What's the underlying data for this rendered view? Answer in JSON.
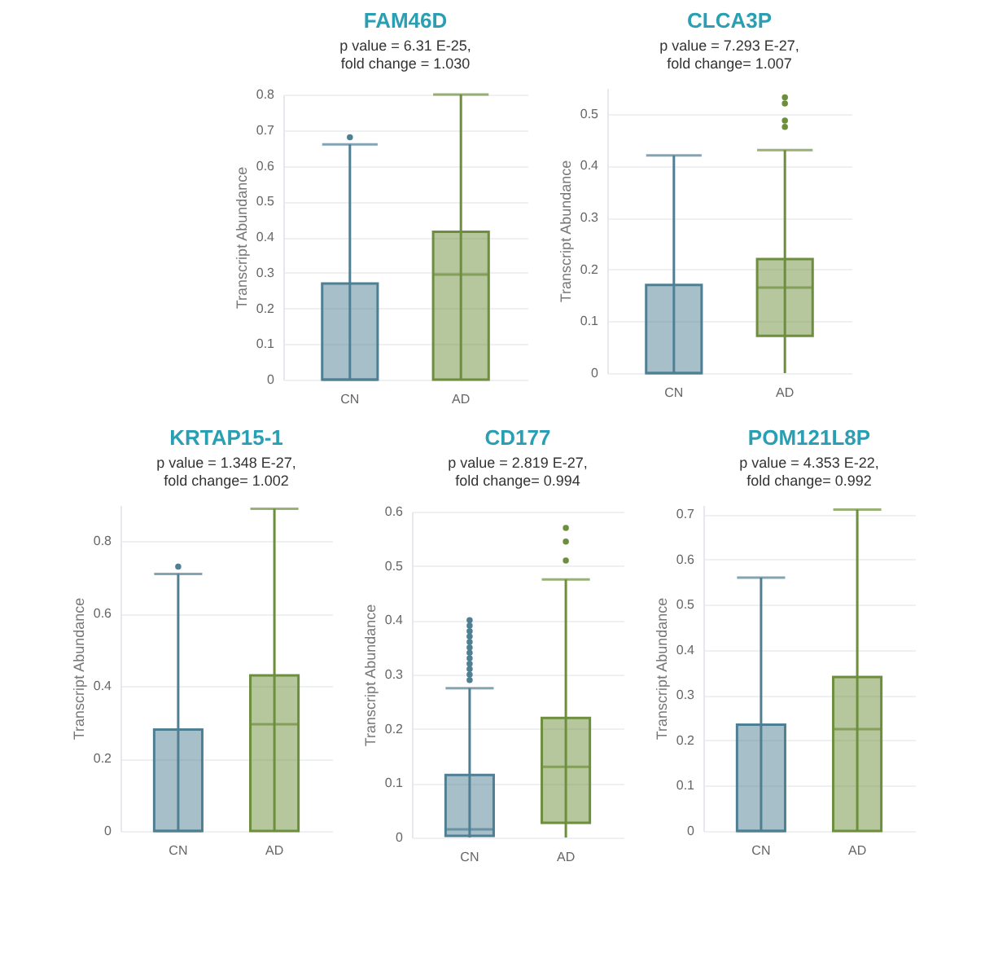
{
  "chart_data": [
    {
      "type": "box",
      "title": "FAM46D",
      "subtitle": "p value = 6.31 E-25,\nfold change = 1.030",
      "ylabel": "Transcript Abundance",
      "categories": [
        "CN",
        "AD"
      ],
      "colors": [
        "#4f7f93",
        "#6d8e3c"
      ],
      "grid": "y",
      "ylim": [
        0,
        0.8
      ],
      "yticks": [
        0,
        0.1,
        0.2,
        0.3,
        0.4,
        0.5,
        0.6,
        0.7,
        0.8
      ],
      "boxes": [
        {
          "low": 0,
          "q1": 0,
          "median": 0,
          "q3": 0.27,
          "high": 0.66,
          "outliers": [
            0.68
          ]
        },
        {
          "low": 0,
          "q1": 0,
          "median": 0.295,
          "q3": 0.415,
          "high": 0.8
        }
      ]
    },
    {
      "type": "box",
      "title": "CLCA3P",
      "subtitle": "p value = 7.293 E-27,\nfold change= 1.007",
      "ylabel": "Transcript Abundance",
      "categories": [
        "CN",
        "AD"
      ],
      "colors": [
        "#4f7f93",
        "#6d8e3c"
      ],
      "grid": "y",
      "ylim": [
        0,
        0.55
      ],
      "yticks": [
        0,
        0.1,
        0.2,
        0.3,
        0.4,
        0.5
      ],
      "boxes": [
        {
          "low": 0,
          "q1": 0,
          "median": 0,
          "q3": 0.17,
          "high": 0.42
        },
        {
          "low": 0,
          "q1": 0.072,
          "median": 0.165,
          "q3": 0.22,
          "high": 0.43,
          "outliers": [
            0.475,
            0.487,
            0.52,
            0.532
          ]
        }
      ]
    },
    {
      "type": "box",
      "title": "KRTAP15-1",
      "subtitle": "p value = 1.348 E-27,\nfold change= 1.002",
      "ylabel": "Transcript Abundance",
      "categories": [
        "CN",
        "AD"
      ],
      "colors": [
        "#4f7f93",
        "#6d8e3c"
      ],
      "grid": "y",
      "ylim": [
        0,
        0.9
      ],
      "yticks": [
        0,
        0.2,
        0.4,
        0.6,
        0.8
      ],
      "boxes": [
        {
          "low": 0,
          "q1": 0,
          "median": 0,
          "q3": 0.28,
          "high": 0.71,
          "outliers": [
            0.73
          ]
        },
        {
          "low": 0,
          "q1": 0,
          "median": 0.295,
          "q3": 0.43,
          "high": 0.89
        }
      ]
    },
    {
      "type": "box",
      "title": "CD177",
      "subtitle": "p value = 2.819 E-27,\nfold change= 0.994",
      "ylabel": "Transcript Abundance",
      "categories": [
        "CN",
        "AD"
      ],
      "colors": [
        "#4f7f93",
        "#6d8e3c"
      ],
      "grid": "y",
      "ylim": [
        0,
        0.6
      ],
      "yticks": [
        0,
        0.1,
        0.2,
        0.3,
        0.4,
        0.5,
        0.6
      ],
      "boxes": [
        {
          "low": 0,
          "q1": 0.003,
          "median": 0.015,
          "q3": 0.115,
          "high": 0.275,
          "outliers": [
            0.29,
            0.3,
            0.31,
            0.32,
            0.33,
            0.34,
            0.35,
            0.36,
            0.37,
            0.38,
            0.39,
            0.4
          ]
        },
        {
          "low": 0,
          "q1": 0.027,
          "median": 0.13,
          "q3": 0.22,
          "high": 0.475,
          "outliers": [
            0.51,
            0.545,
            0.57
          ]
        }
      ]
    },
    {
      "type": "box",
      "title": "POM121L8P",
      "subtitle": "p value = 4.353 E-22,\nfold change= 0.992",
      "ylabel": "Transcript Abundance",
      "categories": [
        "CN",
        "AD"
      ],
      "colors": [
        "#4f7f93",
        "#6d8e3c"
      ],
      "grid": "y",
      "ylim": [
        0,
        0.72
      ],
      "yticks": [
        0,
        0.1,
        0.2,
        0.3,
        0.4,
        0.5,
        0.6,
        0.7
      ],
      "boxes": [
        {
          "low": 0,
          "q1": 0,
          "median": 0,
          "q3": 0.235,
          "high": 0.56
        },
        {
          "low": 0,
          "q1": 0,
          "median": 0.225,
          "q3": 0.34,
          "high": 0.71
        }
      ]
    }
  ]
}
